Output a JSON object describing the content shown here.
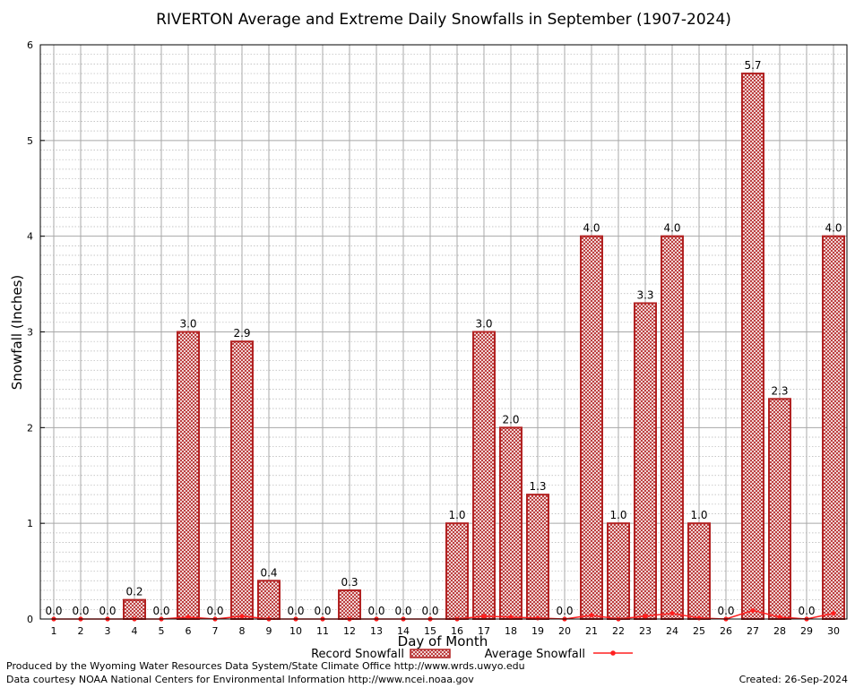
{
  "chart_data": {
    "type": "bar",
    "title": "RIVERTON Average and Extreme Daily Snowfalls in September (1907-2024)",
    "xlabel": "Day of Month",
    "ylabel": "Snowfall (Inches)",
    "ylim": [
      0,
      6
    ],
    "yticks": [
      "0",
      "1",
      "2",
      "3",
      "4",
      "5",
      "6"
    ],
    "grid": true,
    "legend_position": "bottom-center",
    "categories": [
      "1",
      "2",
      "3",
      "4",
      "5",
      "6",
      "7",
      "8",
      "9",
      "10",
      "11",
      "12",
      "13",
      "14",
      "15",
      "16",
      "17",
      "18",
      "19",
      "20",
      "21",
      "22",
      "23",
      "24",
      "25",
      "26",
      "27",
      "28",
      "29",
      "30"
    ],
    "series": [
      {
        "name": "Record Snowfall",
        "kind": "bar",
        "color": "#b22222",
        "values": [
          0.0,
          0.0,
          0.0,
          0.2,
          0.0,
          3.0,
          0.0,
          2.9,
          0.4,
          0.0,
          0.0,
          0.3,
          0.0,
          0.0,
          0.0,
          1.0,
          3.0,
          2.0,
          1.3,
          0.0,
          4.0,
          1.0,
          3.3,
          4.0,
          1.0,
          0.0,
          5.7,
          2.3,
          0.0,
          4.0
        ],
        "labels": [
          "0.0",
          "0.0",
          "0.0",
          "0.2",
          "0.0",
          "3.0",
          "0.0",
          "2.9",
          "0.4",
          "0.0",
          "0.0",
          "0.3",
          "0.0",
          "0.0",
          "0.0",
          "1.0",
          "3.0",
          "2.0",
          "1.3",
          "0.0",
          "4.0",
          "1.0",
          "3.3",
          "4.0",
          "1.0",
          "0.0",
          "5.7",
          "2.3",
          "0.0",
          "4.0"
        ]
      },
      {
        "name": "Average Snowfall",
        "kind": "line",
        "color": "#ff2020",
        "values": [
          0.0,
          0.0,
          0.0,
          0.0,
          0.0,
          0.02,
          0.0,
          0.03,
          0.0,
          0.0,
          0.0,
          0.0,
          0.0,
          0.0,
          0.0,
          0.0,
          0.03,
          0.02,
          0.01,
          0.0,
          0.04,
          0.0,
          0.03,
          0.06,
          0.01,
          0.0,
          0.09,
          0.02,
          0.0,
          0.06
        ]
      }
    ]
  },
  "footer": {
    "credit_line1": "Produced by the Wyoming Water Resources Data System/State Climate Office http://www.wrds.uwyo.edu",
    "credit_line2": "Data courtesy NOAA National Centers for Environmental Information http://www.ncei.noaa.gov",
    "created": "Created:  26-Sep-2024"
  }
}
